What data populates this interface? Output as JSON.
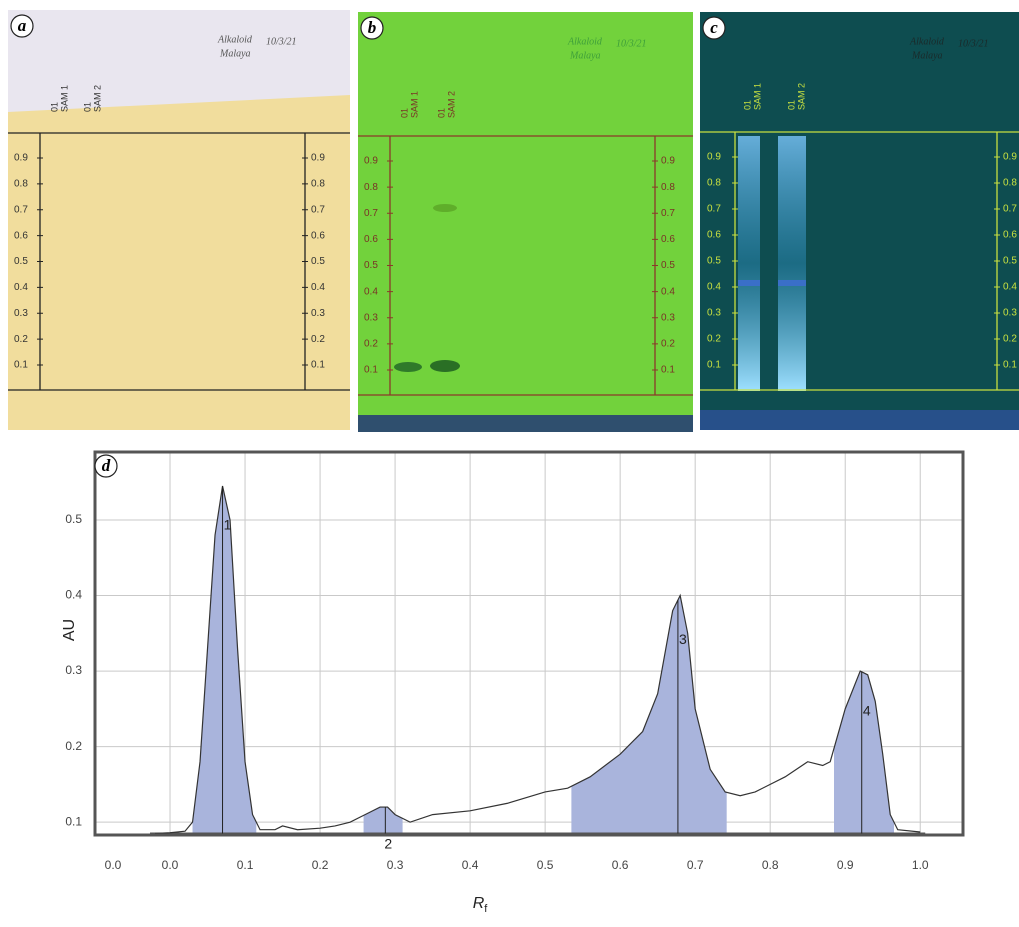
{
  "plates": [
    {
      "letter": "a"
    },
    {
      "letter": "b"
    },
    {
      "letter": "c"
    }
  ],
  "lanes": [
    [
      "01",
      "SAM 1"
    ],
    [
      "01",
      "SAM 2"
    ]
  ],
  "handwriting": [
    "Alkaloid",
    "10/3/21",
    "Malaya"
  ],
  "scale": [
    "0.9",
    "0.8",
    "0.7",
    "0.6",
    "0.5",
    "0.4",
    "0.3",
    "0.2",
    "0.1"
  ],
  "chart_data": {
    "type": "line",
    "panel_letter": "d",
    "ylabel": "AU",
    "xlabel": "R",
    "xlabel_subscript": "f",
    "corner_label": "0.0",
    "x": [
      -0.02,
      0.0,
      0.02,
      0.03,
      0.04,
      0.05,
      0.06,
      0.07,
      0.08,
      0.09,
      0.1,
      0.11,
      0.12,
      0.14,
      0.15,
      0.17,
      0.2,
      0.22,
      0.24,
      0.26,
      0.28,
      0.29,
      0.3,
      0.32,
      0.35,
      0.4,
      0.45,
      0.5,
      0.53,
      0.56,
      0.6,
      0.63,
      0.65,
      0.67,
      0.68,
      0.69,
      0.7,
      0.72,
      0.74,
      0.76,
      0.78,
      0.8,
      0.82,
      0.85,
      0.87,
      0.88,
      0.9,
      0.92,
      0.93,
      0.94,
      0.95,
      0.96,
      0.97,
      1.0
    ],
    "values": [
      0.085,
      0.086,
      0.088,
      0.1,
      0.18,
      0.33,
      0.48,
      0.545,
      0.5,
      0.33,
      0.18,
      0.11,
      0.09,
      0.09,
      0.095,
      0.09,
      0.092,
      0.095,
      0.1,
      0.11,
      0.12,
      0.12,
      0.11,
      0.1,
      0.11,
      0.115,
      0.125,
      0.14,
      0.145,
      0.16,
      0.19,
      0.22,
      0.27,
      0.38,
      0.4,
      0.35,
      0.25,
      0.17,
      0.14,
      0.135,
      0.14,
      0.15,
      0.16,
      0.18,
      0.175,
      0.18,
      0.25,
      0.3,
      0.295,
      0.26,
      0.19,
      0.11,
      0.09,
      0.087
    ],
    "peaks": [
      {
        "label": "1",
        "rf": 0.07,
        "start": 0.03,
        "end": 0.115
      },
      {
        "label": "2",
        "rf": 0.287,
        "start": 0.258,
        "end": 0.31
      },
      {
        "label": "3",
        "rf": 0.677,
        "start": 0.535,
        "end": 0.742
      },
      {
        "label": "4",
        "rf": 0.922,
        "start": 0.885,
        "end": 0.965
      }
    ],
    "color": "#333333",
    "fill_color": "#a9b4dc",
    "xlim": [
      -0.1,
      1.057
    ],
    "ylim": [
      0.083,
      0.59
    ],
    "xticks": [
      {
        "value": 0.0,
        "label": "0.0"
      },
      0.1,
      0.2,
      0.3,
      0.4,
      0.5,
      0.6,
      0.7,
      0.8,
      0.9,
      {
        "value": 1.0,
        "label": "1.0"
      }
    ],
    "yticks": [
      0.1,
      0.2,
      0.3,
      0.4,
      0.5
    ],
    "grid": true
  }
}
